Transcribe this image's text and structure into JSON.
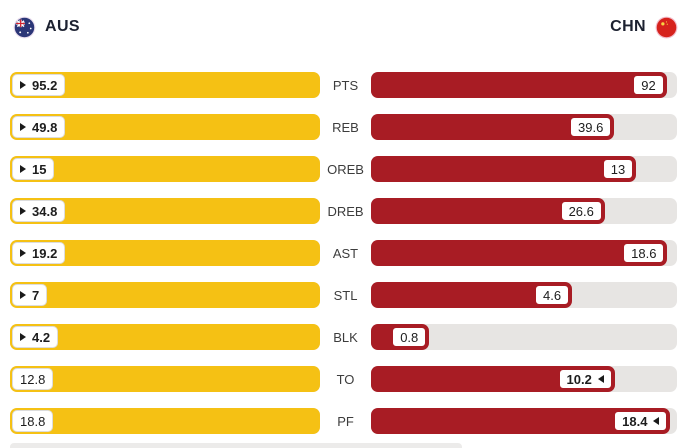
{
  "header": {
    "left_team": "AUS",
    "right_team": "CHN"
  },
  "colors": {
    "aus_bar": "#F5C114",
    "chn_bar": "#A81C24",
    "track": "#E7E5E3",
    "leader_arrow": "#1a1a1a"
  },
  "rows": [
    {
      "label": "PTS",
      "left": "95.2",
      "right": "92",
      "left_value": 95.2,
      "right_value": 92,
      "leader": "left"
    },
    {
      "label": "REB",
      "left": "49.8",
      "right": "39.6",
      "left_value": 49.8,
      "right_value": 39.6,
      "leader": "left"
    },
    {
      "label": "OREB",
      "left": "15",
      "right": "13",
      "left_value": 15,
      "right_value": 13,
      "leader": "left"
    },
    {
      "label": "DREB",
      "left": "34.8",
      "right": "26.6",
      "left_value": 34.8,
      "right_value": 26.6,
      "leader": "left"
    },
    {
      "label": "AST",
      "left": "19.2",
      "right": "18.6",
      "left_value": 19.2,
      "right_value": 18.6,
      "leader": "left"
    },
    {
      "label": "STL",
      "left": "7",
      "right": "4.6",
      "left_value": 7,
      "right_value": 4.6,
      "leader": "left"
    },
    {
      "label": "BLK",
      "left": "4.2",
      "right": "0.8",
      "left_value": 4.2,
      "right_value": 0.8,
      "leader": "left"
    },
    {
      "label": "TO",
      "left": "12.8",
      "right": "10.2",
      "left_value": 12.8,
      "right_value": 10.2,
      "leader": "right"
    },
    {
      "label": "PF",
      "left": "18.8",
      "right": "18.4",
      "left_value": 18.8,
      "right_value": 18.4,
      "leader": "right"
    }
  ],
  "chart_data": {
    "type": "bar",
    "subtype": "mirrored-comparison",
    "title": "AUS vs CHN team statistics",
    "categories": [
      "PTS",
      "REB",
      "OREB",
      "DREB",
      "AST",
      "STL",
      "BLK",
      "TO",
      "PF"
    ],
    "series": [
      {
        "name": "AUS",
        "color": "#F5C114",
        "values": [
          95.2,
          49.8,
          15,
          34.8,
          19.2,
          7,
          4.2,
          12.8,
          18.8
        ]
      },
      {
        "name": "CHN",
        "color": "#A81C24",
        "values": [
          92,
          39.6,
          13,
          26.6,
          18.6,
          4.6,
          0.8,
          10.2,
          18.4
        ]
      }
    ],
    "leaders": [
      "AUS",
      "AUS",
      "AUS",
      "AUS",
      "AUS",
      "AUS",
      "AUS",
      "CHN",
      "CHN"
    ],
    "layout_hint": "each bar scaled to per-row max; category labels centered between the two bars; leader value marked with an arrow"
  }
}
